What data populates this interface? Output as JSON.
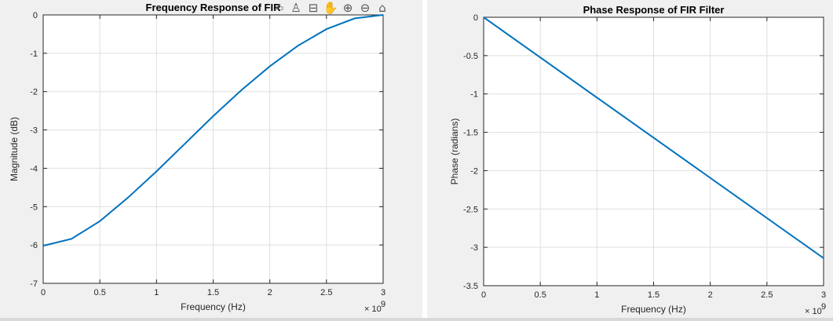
{
  "chart_data": [
    {
      "type": "line",
      "title": "Frequency Response of FIR",
      "xlabel": "Frequency (Hz)",
      "ylabel": "Magnitude (dB)",
      "x_exponent_label": "× 10",
      "x_exponent_power": "9",
      "xlim": [
        0,
        3
      ],
      "ylim": [
        -7,
        0
      ],
      "grid": true,
      "color": "#0072BD",
      "xticks": [
        "0",
        "0.5",
        "1",
        "1.5",
        "2",
        "2.5",
        "3"
      ],
      "yticks": [
        "0",
        "-1",
        "-2",
        "-3",
        "-4",
        "-5",
        "-6",
        "-7"
      ],
      "series": [
        {
          "x": [
            0,
            0.25,
            0.5,
            0.75,
            1.0,
            1.25,
            1.5,
            1.75,
            2.0,
            2.25,
            2.5,
            2.75,
            3.0
          ],
          "y": [
            -6.02,
            -5.84,
            -5.38,
            -4.76,
            -4.08,
            -3.36,
            -2.64,
            -1.96,
            -1.34,
            -0.8,
            -0.37,
            -0.09,
            0
          ]
        }
      ]
    },
    {
      "type": "line",
      "title": "Phase Response of FIR Filter",
      "xlabel": "Frequency (Hz)",
      "ylabel": "Phase (radians)",
      "x_exponent_label": "× 10",
      "x_exponent_power": "9",
      "xlim": [
        0,
        3
      ],
      "ylim": [
        -3.5,
        0
      ],
      "grid": true,
      "color": "#0072BD",
      "xticks": [
        "0",
        "0.5",
        "1",
        "1.5",
        "2",
        "2.5",
        "3"
      ],
      "yticks": [
        "0",
        "-0.5",
        "-1",
        "-1.5",
        "-2",
        "-2.5",
        "-3",
        "-3.5"
      ],
      "series": [
        {
          "x": [
            0,
            3
          ],
          "y": [
            0,
            -3.14159
          ]
        }
      ]
    }
  ],
  "toolbar": [
    {
      "name": "brush-icon",
      "glyph": "✍"
    },
    {
      "name": "datatip-icon",
      "glyph": "♙"
    },
    {
      "name": "rotate-icon",
      "glyph": "⊟"
    },
    {
      "name": "pan-hand-icon",
      "glyph": "✋"
    },
    {
      "name": "zoom-in-icon",
      "glyph": "⊕"
    },
    {
      "name": "zoom-out-icon",
      "glyph": "⊖"
    },
    {
      "name": "home-icon",
      "glyph": "⌂"
    }
  ]
}
